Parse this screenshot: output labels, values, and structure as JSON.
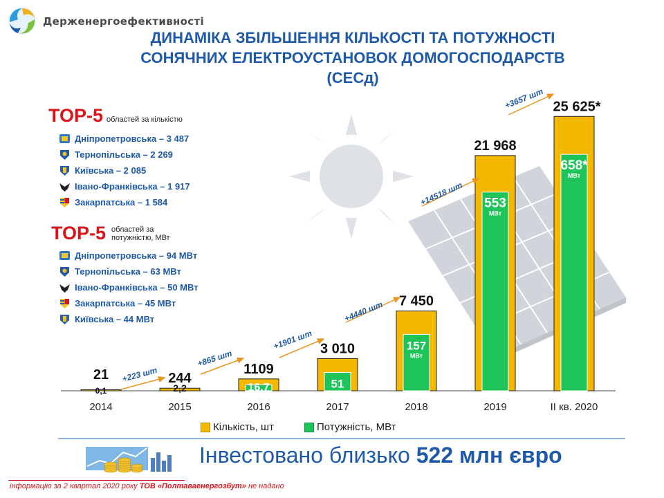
{
  "brand": "Держенергоефективності",
  "title": {
    "line1": "ДИНАМІКА ЗБІЛЬШЕННЯ КІЛЬКОСТІ ТА ПОТУЖНОСТІ",
    "line2": "СОНЯЧНИХ ЕЛЕКТРОУСТАНОВОК ДОМОГОСПОДАРСТВ",
    "line3": "(СЕСд)"
  },
  "top_count": {
    "heading": "TOP-5",
    "subtitle": "областей за кількістю",
    "items": [
      "Дніпропетровська – 3 487",
      "Тернопільська – 2 269",
      "Київська – 2 085",
      "Івано-Франківська – 1 917",
      "Закарпатська – 1 584"
    ],
    "icons": [
      "dnipro-coat-icon",
      "ternopil-coat-icon",
      "kyiv-coat-icon",
      "ivano-frankivsk-coat-icon",
      "zakarpattia-coat-icon"
    ]
  },
  "top_power": {
    "heading": "TOP-5",
    "subtitle_line1": "областей за",
    "subtitle_line2": "потужністю, МВт",
    "items": [
      "Дніпропетровська – 94 МВт",
      "Тернопільська – 63 МВт",
      "Івано-Франківська – 50 МВт",
      "Закарпатська – 45 МВт",
      "Київська – 44 МВт"
    ],
    "icons": [
      "dnipro-coat-icon",
      "ternopil-coat-icon",
      "ivano-frankivsk-coat-icon",
      "zakarpattia-coat-icon",
      "kyiv-coat-icon"
    ]
  },
  "chart_data": {
    "type": "bar",
    "categories": [
      "2014",
      "2015",
      "2016",
      "2017",
      "2018",
      "2019",
      "II кв. 2020"
    ],
    "series": [
      {
        "name": "Кількість, шт",
        "values": [
          21,
          244,
          1109,
          3010,
          7450,
          21968,
          25625
        ],
        "color": "#f5b800"
      },
      {
        "name": "Потужність, МВт",
        "values": [
          0.1,
          2.2,
          16.7,
          51,
          157,
          553,
          658
        ],
        "color": "#1ec45a"
      }
    ],
    "count_labels": [
      "21",
      "244",
      "1109",
      "3 010",
      "7 450",
      "21 968",
      "25 625*"
    ],
    "power_labels": [
      "0,1",
      "2,2",
      "16,7",
      "51",
      "157",
      "553",
      "658*"
    ],
    "power_unit": "МВт",
    "increments": [
      "+223 шт",
      "+865 шт",
      "+1901 шт",
      "+4440 шт",
      "+14518 шт",
      "+3657 шт"
    ],
    "legend": [
      "Кількість, шт",
      "Потужність, МВт"
    ],
    "legend_position": "bottom",
    "ylim": [
      0,
      27000
    ],
    "grid": false
  },
  "footer": {
    "invest_prefix": "Інвестовано близько ",
    "invest_amount": "522 млн євро",
    "note_part1": "інформацію за 2 квартал 2020 року ",
    "note_company": "ТОВ «Полтаваенергозбут»",
    "note_part2": " не надано"
  },
  "colors": {
    "title_blue": "#1f5aa8",
    "accent_red": "#d9141b",
    "count_bar": "#f5b800",
    "power_bar": "#1ec45a",
    "arrow": "#e8961e"
  }
}
